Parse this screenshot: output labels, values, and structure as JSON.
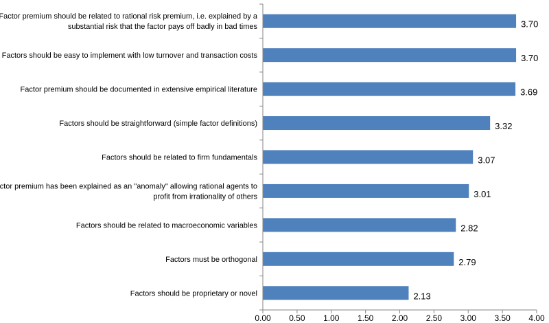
{
  "chart_data": {
    "type": "bar",
    "orientation": "horizontal",
    "title": "",
    "xlabel": "",
    "ylabel": "",
    "xlim": [
      0,
      4
    ],
    "tick_step": 0.5,
    "tick_labels": [
      "0.00",
      "0.50",
      "1.00",
      "1.50",
      "2.00",
      "2.50",
      "3.00",
      "3.50",
      "4.00"
    ],
    "grid": false,
    "legend": "none",
    "bar_color": "#4F81BD",
    "categories": [
      [
        "Factor premium should be related to rational risk premium, i.e. explained by a",
        "substantial risk that the factor pays off badly in bad times"
      ],
      [
        "Factors should be easy to implement with low turnover and transaction costs"
      ],
      [
        "Factor premium should be documented in extensive empirical literature"
      ],
      [
        "Factors should be straightforward (simple factor definitions)"
      ],
      [
        "Factors should be related to firm fundamentals"
      ],
      [
        "Factor premium has been explained as an \"anomaly\" allowing rational agents to",
        "profit from irrationality of others"
      ],
      [
        "Factors should be related to macroeconomic variables"
      ],
      [
        "Factors must be orthogonal"
      ],
      [
        "Factors should be proprietary or novel"
      ]
    ],
    "values": [
      3.7,
      3.7,
      3.69,
      3.32,
      3.07,
      3.01,
      2.82,
      2.79,
      2.13
    ],
    "value_labels": [
      "3.70",
      "3.70",
      "3.69",
      "3.32",
      "3.07",
      "3.01",
      "2.82",
      "2.79",
      "2.13"
    ]
  }
}
